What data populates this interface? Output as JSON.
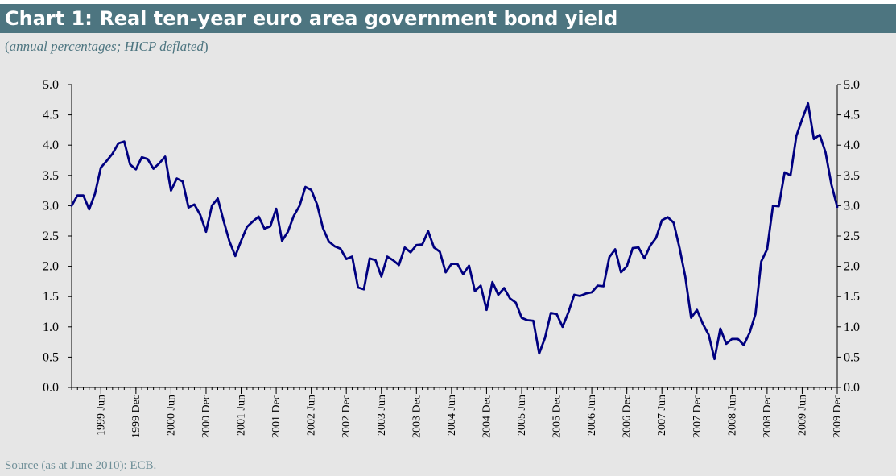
{
  "title": "Chart 1: Real ten-year euro area government bond yield",
  "subtitle": {
    "open": "(",
    "italic": "annual percentages; HICP deflated",
    "close": ")"
  },
  "source": "Source (as at June 2010): ECB.",
  "colors": {
    "title_bar": "#4d7580",
    "panel": "#e6e6e6",
    "line": "#000080",
    "axis": "#000000"
  },
  "chart_data": {
    "type": "line",
    "ylim": [
      0,
      5
    ],
    "yticks": [
      "0.0",
      "0.5",
      "1.0",
      "1.5",
      "2.0",
      "2.5",
      "3.0",
      "3.5",
      "4.0",
      "4.5",
      "5.0"
    ],
    "ytick_values": [
      0,
      0.5,
      1,
      1.5,
      2,
      2.5,
      3,
      3.5,
      4,
      4.5,
      5
    ],
    "x_start": "1999 Jan",
    "x_end": "2009 Dec",
    "x_tick_labels": [
      "1999 Jun",
      "1999 Dec",
      "2000 Jun",
      "2000 Dec",
      "2001 Jun",
      "2001 Dec",
      "2002 Jun",
      "2002 Dec",
      "2003 Jun",
      "2003 Dec",
      "2004 Jun",
      "2004 Dec",
      "2005 Jun",
      "2005 Dec",
      "2006 Jun",
      "2006 Dec",
      "2007 Jun",
      "2007 Dec",
      "2008 Jun",
      "2008 Dec",
      "2009 Jun",
      "2009 Dec"
    ],
    "x_tick_months": [
      5,
      11,
      17,
      23,
      29,
      35,
      41,
      47,
      53,
      59,
      65,
      71,
      77,
      83,
      89,
      95,
      101,
      107,
      113,
      119,
      125,
      131
    ],
    "grid": false,
    "legend": "none",
    "secondary_y_axis": true,
    "series": [
      {
        "values": [
          3.0,
          3.17,
          3.17,
          2.94,
          3.2,
          3.63,
          3.74,
          3.86,
          4.03,
          4.06,
          3.68,
          3.6,
          3.8,
          3.77,
          3.61,
          3.7,
          3.81,
          3.25,
          3.45,
          3.4,
          2.97,
          3.02,
          2.85,
          2.57,
          3.0,
          3.12,
          2.75,
          2.41,
          2.17,
          2.42,
          2.65,
          2.74,
          2.82,
          2.62,
          2.66,
          2.95,
          2.42,
          2.57,
          2.83,
          3.0,
          3.31,
          3.26,
          3.02,
          2.63,
          2.41,
          2.33,
          2.29,
          2.12,
          2.16,
          1.65,
          1.62,
          2.13,
          2.1,
          1.83,
          2.16,
          2.1,
          2.02,
          2.31,
          2.23,
          2.35,
          2.36,
          2.58,
          2.31,
          2.24,
          1.9,
          2.04,
          2.04,
          1.87,
          2.01,
          1.59,
          1.68,
          1.28,
          1.74,
          1.53,
          1.64,
          1.47,
          1.4,
          1.15,
          1.11,
          1.1,
          0.56,
          0.82,
          1.23,
          1.21,
          1.0,
          1.24,
          1.53,
          1.51,
          1.55,
          1.57,
          1.68,
          1.67,
          2.15,
          2.28,
          1.9,
          2.0,
          2.3,
          2.31,
          2.13,
          2.34,
          2.47,
          2.76,
          2.81,
          2.72,
          2.31,
          1.83,
          1.15,
          1.28,
          1.05,
          0.87,
          0.47,
          0.97,
          0.72,
          0.8,
          0.8,
          0.7,
          0.9,
          1.21,
          2.08,
          2.28,
          3.0,
          2.99,
          3.55,
          3.5,
          4.15,
          4.43,
          4.69,
          4.1,
          4.17,
          3.88,
          3.35,
          2.98
        ]
      }
    ]
  }
}
